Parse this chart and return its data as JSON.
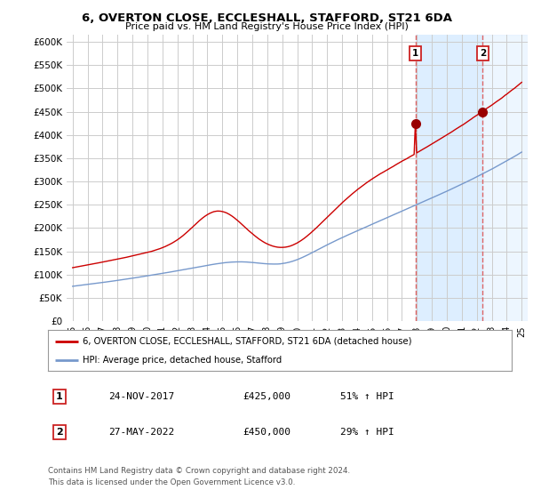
{
  "title": "6, OVERTON CLOSE, ECCLESHALL, STAFFORD, ST21 6DA",
  "subtitle": "Price paid vs. HM Land Registry's House Price Index (HPI)",
  "ylabel_ticks": [
    "£0",
    "£50K",
    "£100K",
    "£150K",
    "£200K",
    "£250K",
    "£300K",
    "£350K",
    "£400K",
    "£450K",
    "£500K",
    "£550K",
    "£600K"
  ],
  "ytick_values": [
    0,
    50000,
    100000,
    150000,
    200000,
    250000,
    300000,
    350000,
    400000,
    450000,
    500000,
    550000,
    600000
  ],
  "ylim": [
    0,
    615000
  ],
  "background_color": "#ffffff",
  "grid_color": "#cccccc",
  "red_color": "#cc0000",
  "blue_color": "#7799cc",
  "shade_color": "#ddeeff",
  "dash_color": "#dd6666",
  "transaction1": {
    "x": 2017.9,
    "price": 425000,
    "label": "1"
  },
  "transaction2": {
    "x": 2022.4,
    "price": 450000,
    "label": "2"
  },
  "legend_line1": "6, OVERTON CLOSE, ECCLESHALL, STAFFORD, ST21 6DA (detached house)",
  "legend_line2": "HPI: Average price, detached house, Stafford",
  "footer1": "Contains HM Land Registry data © Crown copyright and database right 2024.",
  "footer2": "This data is licensed under the Open Government Licence v3.0.",
  "table_row1": [
    "1",
    "24-NOV-2017",
    "£425,000",
    "51% ↑ HPI"
  ],
  "table_row2": [
    "2",
    "27-MAY-2022",
    "£450,000",
    "29% ↑ HPI"
  ],
  "xlim_left": 1994.6,
  "xlim_right": 2025.4
}
